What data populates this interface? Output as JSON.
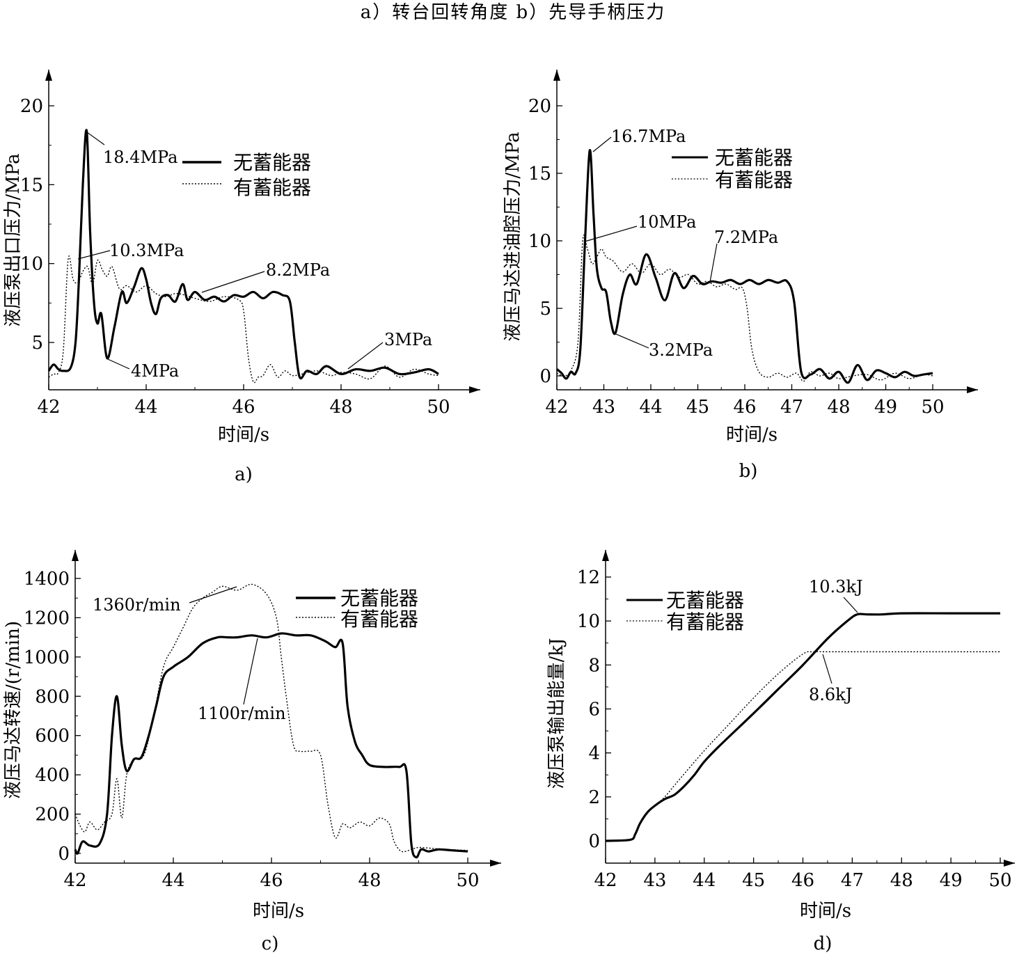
{
  "figure": {
    "top_caption": "a）转台回转角度   b）先导手柄压力"
  },
  "colors": {
    "line": "#000000",
    "background": "#ffffff"
  },
  "chart_data": [
    {
      "id": "a",
      "type": "line",
      "caption": "a)",
      "xlabel": "时间/s",
      "ylabel": "液压泵出口压力/MPa",
      "xlim": [
        42,
        50
      ],
      "ylim": [
        2,
        22
      ],
      "xticks": [
        42,
        44,
        46,
        48,
        50
      ],
      "yticks": [
        5,
        10,
        15,
        20
      ],
      "legend": {
        "position": "top-right",
        "entries": [
          "无蓄能器",
          "有蓄能器"
        ]
      },
      "series": [
        {
          "name": "无蓄能器",
          "style": "solid",
          "x": [
            42,
            42.1,
            42.2,
            42.3,
            42.45,
            42.55,
            42.62,
            42.7,
            42.78,
            42.85,
            42.93,
            43.0,
            43.08,
            43.2,
            43.35,
            43.5,
            43.6,
            43.75,
            43.9,
            44.0,
            44.1,
            44.2,
            44.3,
            44.45,
            44.6,
            44.75,
            44.85,
            45.0,
            45.2,
            45.4,
            45.6,
            45.8,
            46.0,
            46.2,
            46.4,
            46.6,
            46.8,
            46.95,
            47.05,
            47.15,
            47.3,
            47.5,
            47.7,
            48.0,
            48.3,
            48.6,
            48.9,
            49.2,
            49.5,
            49.8,
            50.0
          ],
          "y": [
            3.2,
            3.6,
            3.3,
            3.2,
            3.4,
            5.0,
            9.0,
            15.0,
            18.4,
            12.0,
            7.5,
            6.2,
            6.8,
            4.0,
            6.0,
            8.2,
            7.5,
            8.5,
            9.7,
            9.0,
            7.5,
            6.8,
            7.8,
            8.0,
            7.6,
            8.7,
            7.7,
            8.2,
            7.7,
            7.9,
            7.6,
            8.0,
            7.9,
            8.2,
            7.8,
            8.2,
            8.0,
            7.6,
            5.0,
            2.8,
            3.2,
            3.0,
            3.5,
            3.0,
            3.3,
            3.2,
            3.4,
            3.0,
            3.1,
            3.3,
            3.0
          ]
        },
        {
          "name": "有蓄能器",
          "style": "dotted",
          "x": [
            42,
            42.1,
            42.2,
            42.3,
            42.4,
            42.5,
            42.6,
            42.7,
            42.8,
            42.9,
            43.0,
            43.1,
            43.2,
            43.3,
            43.45,
            43.6,
            43.8,
            44.0,
            44.2,
            44.4,
            44.6,
            44.8,
            45.0,
            45.3,
            45.6,
            45.9,
            46.0,
            46.1,
            46.2,
            46.3,
            46.4,
            46.55,
            46.7,
            46.85,
            47.0,
            47.2,
            47.5,
            47.8,
            48.0,
            48.3,
            48.6,
            48.9,
            49.2,
            49.5,
            49.8,
            50.0
          ],
          "y": [
            2.8,
            3.0,
            3.1,
            4.5,
            10.3,
            9.0,
            8.8,
            9.5,
            9.8,
            8.7,
            10.2,
            9.6,
            9.2,
            9.8,
            8.4,
            8.6,
            8.2,
            8.6,
            8.1,
            7.9,
            8.1,
            8.0,
            7.8,
            7.6,
            7.9,
            7.7,
            7.0,
            4.0,
            2.5,
            2.8,
            2.9,
            3.6,
            2.8,
            3.2,
            2.9,
            3.0,
            3.2,
            2.9,
            3.1,
            3.0,
            2.7,
            3.5,
            2.8,
            3.3,
            3.0,
            2.9
          ]
        }
      ],
      "annotations": [
        "18.4MPa",
        "10.3MPa",
        "8.2MPa",
        "4MPa",
        "3MPa"
      ]
    },
    {
      "id": "b",
      "type": "line",
      "caption": "b)",
      "xlabel": "时间/s",
      "ylabel": "液压马达进油腔压力/MPa",
      "xlim": [
        42,
        50
      ],
      "ylim": [
        -1,
        22
      ],
      "xticks": [
        42,
        43,
        44,
        45,
        46,
        47,
        48,
        49,
        50
      ],
      "yticks": [
        0,
        5,
        10,
        15,
        20
      ],
      "legend": {
        "position": "top-right",
        "entries": [
          "无蓄能器",
          "有蓄能器"
        ]
      },
      "series": [
        {
          "name": "无蓄能器",
          "style": "solid",
          "x": [
            42,
            42.1,
            42.2,
            42.3,
            42.4,
            42.5,
            42.6,
            42.7,
            42.78,
            42.85,
            42.95,
            43.05,
            43.15,
            43.25,
            43.4,
            43.55,
            43.7,
            43.9,
            44.1,
            44.3,
            44.5,
            44.7,
            44.9,
            45.1,
            45.3,
            45.5,
            45.7,
            45.9,
            46.1,
            46.3,
            46.5,
            46.7,
            46.9,
            47.05,
            47.2,
            47.4,
            47.6,
            47.8,
            48.0,
            48.2,
            48.4,
            48.6,
            48.8,
            49.0,
            49.2,
            49.4,
            49.6,
            49.8,
            50.0
          ],
          "y": [
            0.5,
            0.2,
            -0.2,
            0.3,
            0.2,
            2.0,
            10.0,
            16.7,
            12.0,
            8.0,
            6.5,
            6.2,
            4.0,
            3.2,
            6.0,
            7.5,
            6.8,
            9.0,
            7.3,
            5.6,
            7.6,
            6.5,
            7.4,
            6.8,
            7.0,
            6.9,
            7.1,
            6.8,
            7.1,
            6.8,
            7.1,
            6.9,
            7.0,
            5.5,
            0.3,
            0.1,
            0.5,
            -0.2,
            0.3,
            -0.5,
            0.8,
            -0.3,
            0.4,
            0.2,
            -0.1,
            0.3,
            0.0,
            0.1,
            0.2
          ]
        },
        {
          "name": "有蓄能器",
          "style": "dotted",
          "x": [
            42,
            42.15,
            42.3,
            42.45,
            42.55,
            42.65,
            42.75,
            42.85,
            42.95,
            43.05,
            43.2,
            43.4,
            43.6,
            43.8,
            44.0,
            44.2,
            44.4,
            44.6,
            44.8,
            45.0,
            45.2,
            45.4,
            45.6,
            45.8,
            45.95,
            46.05,
            46.15,
            46.3,
            46.5,
            46.7,
            46.9,
            47.1,
            47.25,
            47.4,
            47.6,
            47.8,
            48.0,
            48.3,
            48.6,
            48.9,
            49.2,
            49.5,
            49.8,
            50.0
          ],
          "y": [
            0.2,
            0.0,
            0.4,
            2.5,
            10.0,
            9.4,
            8.3,
            8.8,
            9.4,
            8.8,
            8.5,
            7.7,
            8.3,
            7.6,
            8.3,
            7.5,
            7.9,
            7.3,
            7.5,
            6.8,
            7.0,
            6.6,
            6.8,
            6.4,
            6.5,
            5.0,
            2.0,
            0.3,
            -0.1,
            0.2,
            -0.1,
            0.2,
            -0.4,
            0.3,
            0.0,
            0.2,
            -0.2,
            0.0,
            0.1,
            -0.3,
            0.2,
            -0.2,
            0.1,
            0.0
          ]
        }
      ],
      "annotations": [
        "16.7MPa",
        "10MPa",
        "7.2MPa",
        "3.2MPa"
      ]
    },
    {
      "id": "c",
      "type": "line",
      "caption": "c)",
      "xlabel": "时间/s",
      "ylabel": "液压马达转速/(r/min)",
      "xlim": [
        42,
        50
      ],
      "ylim": [
        -50,
        1500
      ],
      "xticks": [
        42,
        44,
        46,
        48,
        50
      ],
      "yticks": [
        0,
        200,
        400,
        600,
        800,
        1000,
        1200,
        1400
      ],
      "legend": {
        "position": "top-right",
        "entries": [
          "无蓄能器",
          "有蓄能器"
        ]
      },
      "series": [
        {
          "name": "无蓄能器",
          "style": "solid",
          "x": [
            42,
            42.05,
            42.15,
            42.3,
            42.5,
            42.65,
            42.75,
            42.85,
            42.95,
            43.05,
            43.2,
            43.35,
            43.5,
            43.65,
            43.8,
            44.0,
            44.3,
            44.6,
            44.9,
            45.1,
            45.3,
            45.6,
            45.9,
            46.2,
            46.5,
            46.8,
            47.1,
            47.3,
            47.45,
            47.55,
            47.7,
            47.85,
            48.0,
            48.3,
            48.6,
            48.75,
            48.85,
            48.95,
            49.05,
            49.2,
            49.4,
            49.7,
            50.0
          ],
          "y": [
            20,
            0,
            60,
            40,
            50,
            200,
            600,
            800,
            550,
            420,
            480,
            490,
            600,
            750,
            900,
            950,
            1000,
            1070,
            1100,
            1100,
            1100,
            1110,
            1100,
            1120,
            1110,
            1110,
            1080,
            1050,
            1070,
            750,
            570,
            500,
            450,
            440,
            440,
            420,
            50,
            -20,
            20,
            10,
            20,
            15,
            10
          ]
        },
        {
          "name": "有蓄能器",
          "style": "dotted",
          "x": [
            42,
            42.1,
            42.2,
            42.3,
            42.45,
            42.6,
            42.75,
            42.85,
            42.95,
            43.05,
            43.2,
            43.4,
            43.6,
            43.8,
            44.0,
            44.2,
            44.4,
            44.6,
            44.8,
            45.0,
            45.3,
            45.6,
            45.9,
            46.1,
            46.2,
            46.3,
            46.45,
            46.6,
            46.8,
            47.0,
            47.15,
            47.3,
            47.45,
            47.6,
            47.8,
            48.0,
            48.2,
            48.4,
            48.5,
            48.65,
            48.85,
            49.0,
            49.3,
            49.6,
            50.0
          ],
          "y": [
            200,
            140,
            110,
            160,
            120,
            160,
            200,
            380,
            180,
            400,
            480,
            500,
            700,
            950,
            1050,
            1150,
            1250,
            1300,
            1330,
            1360,
            1340,
            1370,
            1320,
            1200,
            1000,
            800,
            550,
            520,
            520,
            500,
            250,
            80,
            150,
            130,
            160,
            140,
            180,
            150,
            60,
            10,
            20,
            30,
            25,
            20,
            15
          ]
        }
      ],
      "annotations": [
        "1360r/min",
        "1100r/min"
      ]
    },
    {
      "id": "d",
      "type": "line",
      "caption": "d)",
      "xlabel": "时间/s",
      "ylabel": "液压泵输出能量/kJ",
      "xlim": [
        42,
        50
      ],
      "ylim": [
        -1,
        13
      ],
      "xticks": [
        42,
        43,
        44,
        45,
        46,
        47,
        48,
        49,
        50
      ],
      "yticks": [
        0,
        2,
        4,
        6,
        8,
        10,
        12
      ],
      "legend": {
        "position": "top-left",
        "entries": [
          "无蓄能器",
          "有蓄能器"
        ]
      },
      "series": [
        {
          "name": "无蓄能器",
          "style": "solid",
          "x": [
            42,
            42.5,
            42.6,
            42.7,
            42.85,
            43.0,
            43.2,
            43.4,
            43.6,
            43.8,
            44.0,
            44.3,
            45.0,
            45.5,
            46.0,
            46.5,
            46.9,
            47.1,
            47.3,
            47.6,
            48.0,
            49.0,
            50.0
          ],
          "y": [
            0,
            0.05,
            0.3,
            0.8,
            1.3,
            1.6,
            1.9,
            2.1,
            2.5,
            3.0,
            3.6,
            4.3,
            5.8,
            6.9,
            8.0,
            9.2,
            10.0,
            10.3,
            10.3,
            10.3,
            10.35,
            10.35,
            10.35
          ]
        },
        {
          "name": "有蓄能器",
          "style": "dotted",
          "x": [
            42,
            42.5,
            42.6,
            42.7,
            42.85,
            43.0,
            43.2,
            43.5,
            44.0,
            44.5,
            45.0,
            45.5,
            46.0,
            46.2,
            46.4,
            46.6,
            47.0,
            48.0,
            49.0,
            50.0
          ],
          "y": [
            0,
            0.05,
            0.3,
            0.8,
            1.3,
            1.6,
            2.0,
            2.8,
            4.1,
            5.3,
            6.5,
            7.6,
            8.5,
            8.6,
            8.6,
            8.6,
            8.6,
            8.6,
            8.6,
            8.6
          ]
        }
      ],
      "annotations": [
        "10.3kJ",
        "8.6kJ"
      ]
    }
  ]
}
